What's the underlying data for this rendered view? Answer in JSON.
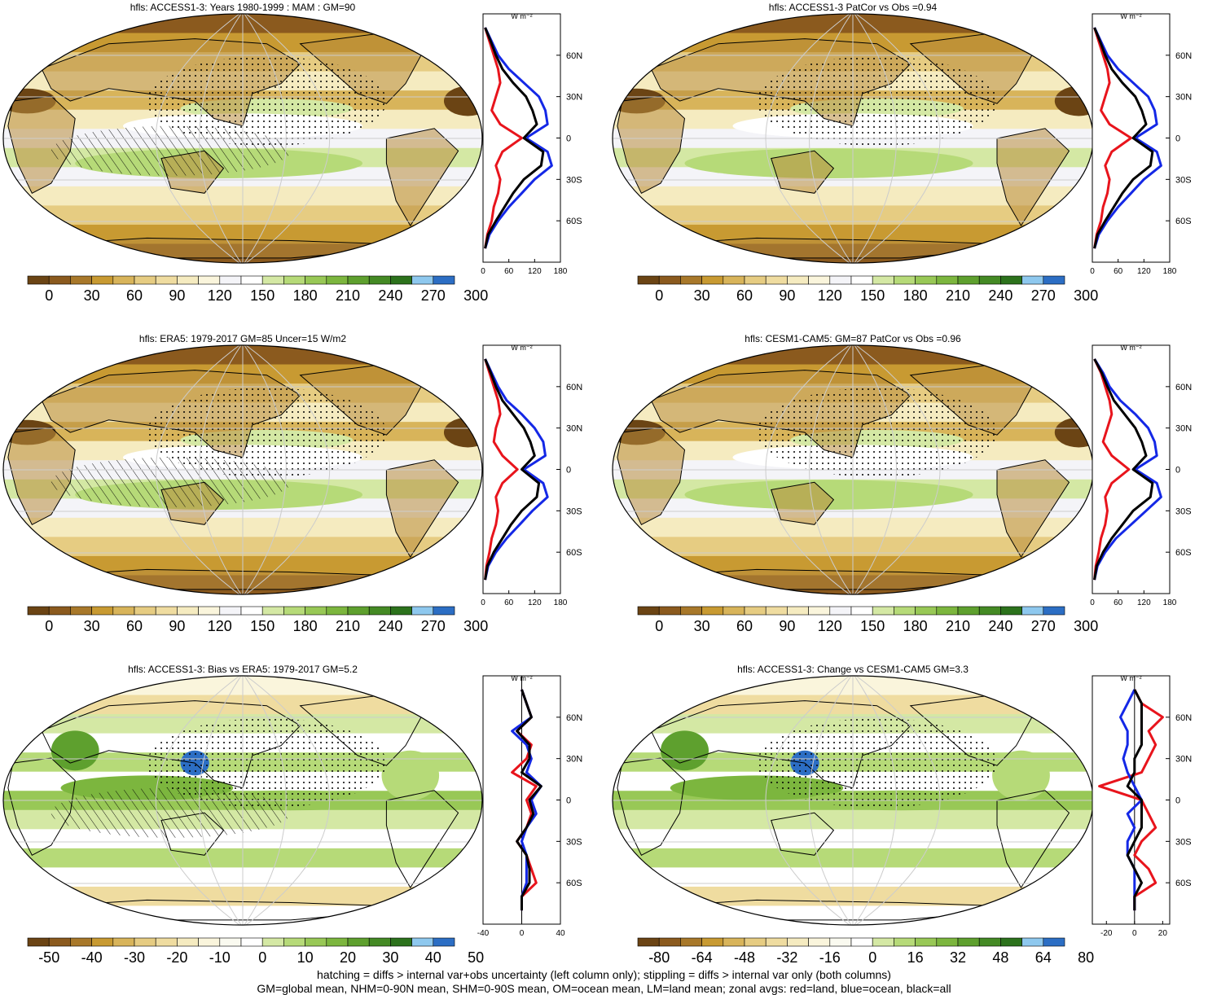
{
  "footer": {
    "line1": "hatching = diffs > internal var+obs uncertainty (left column only); stippling = diffs > internal var only (both columns)",
    "line2": "GM=global mean, NHM=0-90N mean, SHM=0-90S mean, OM=ocean mean, LM=land mean; zonal avgs: red=land, blue=ocean, black=all"
  },
  "colors": {
    "land": "#e8141c",
    "ocean": "#1428e6",
    "all": "#000000"
  },
  "lat_labels": [
    "60N",
    "30N",
    "0",
    "30S",
    "60S"
  ],
  "unit_label": "W m⁻²",
  "chart_data": [
    {
      "type": "heatmap",
      "title": "hfls: ACCESS1-3: Years 1980-1999 : MAM : GM=90",
      "colorbar_ticks": [
        "0",
        "30",
        "60",
        "90",
        "120",
        "150",
        "180",
        "210",
        "240",
        "270",
        "300"
      ],
      "colorbar_colors": [
        "#6b4414",
        "#8b5a1e",
        "#a8782a",
        "#c89a32",
        "#d8b45a",
        "#e6cc82",
        "#efdca0",
        "#f5ebc0",
        "#faf5dc",
        "#f4f4f8",
        "#ffffff",
        "#d4e8a4",
        "#b6da78",
        "#98c856",
        "#7cb63e",
        "#5ea02e",
        "#448a24",
        "#2c721c",
        "#8ec8ee",
        "#2c6ec4"
      ],
      "profile": {
        "xlim": [
          0,
          180
        ],
        "xticks": [
          "0",
          "60",
          "120",
          "180"
        ],
        "lat": [
          80,
          70,
          60,
          50,
          40,
          30,
          20,
          10,
          0,
          -10,
          -20,
          -30,
          -40,
          -50,
          -60,
          -70,
          -80
        ],
        "land": [
          5,
          15,
          25,
          35,
          40,
          30,
          20,
          40,
          90,
          45,
          30,
          40,
          35,
          25,
          20,
          10,
          5
        ],
        "ocean": [
          5,
          20,
          35,
          60,
          95,
          130,
          145,
          150,
          100,
          150,
          160,
          120,
          90,
          60,
          35,
          15,
          5
        ],
        "all": [
          5,
          18,
          30,
          45,
          70,
          100,
          115,
          125,
          95,
          140,
          135,
          95,
          70,
          50,
          30,
          12,
          5
        ]
      }
    },
    {
      "type": "heatmap",
      "title": "hfls: ACCESS1-3 PatCor vs Obs =0.94",
      "colorbar_ticks": [
        "0",
        "30",
        "60",
        "90",
        "120",
        "150",
        "180",
        "210",
        "240",
        "270",
        "300"
      ],
      "colorbar_colors": [
        "#6b4414",
        "#8b5a1e",
        "#a8782a",
        "#c89a32",
        "#d8b45a",
        "#e6cc82",
        "#efdca0",
        "#f5ebc0",
        "#faf5dc",
        "#f4f4f8",
        "#ffffff",
        "#d4e8a4",
        "#b6da78",
        "#98c856",
        "#7cb63e",
        "#5ea02e",
        "#448a24",
        "#2c721c",
        "#8ec8ee",
        "#2c6ec4"
      ],
      "profile": {
        "xlim": [
          0,
          180
        ],
        "xticks": [
          "0",
          "60",
          "120",
          "180"
        ],
        "lat": [
          80,
          70,
          60,
          50,
          40,
          30,
          20,
          10,
          0,
          -10,
          -20,
          -30,
          -40,
          -50,
          -60,
          -70,
          -80
        ],
        "land": [
          5,
          15,
          25,
          35,
          40,
          30,
          20,
          40,
          90,
          45,
          30,
          40,
          35,
          25,
          20,
          10,
          5
        ],
        "ocean": [
          5,
          20,
          35,
          60,
          95,
          130,
          145,
          150,
          100,
          150,
          160,
          120,
          90,
          60,
          35,
          15,
          5
        ],
        "all": [
          5,
          18,
          30,
          45,
          70,
          100,
          115,
          125,
          95,
          140,
          135,
          95,
          70,
          50,
          30,
          12,
          5
        ]
      }
    },
    {
      "type": "heatmap",
      "title": "hfls: ERA5: 1979-2017 GM=85 Uncer=15 W/m2",
      "colorbar_ticks": [
        "0",
        "30",
        "60",
        "90",
        "120",
        "150",
        "180",
        "210",
        "240",
        "270",
        "300"
      ],
      "colorbar_colors": [
        "#6b4414",
        "#8b5a1e",
        "#a8782a",
        "#c89a32",
        "#d8b45a",
        "#e6cc82",
        "#efdca0",
        "#f5ebc0",
        "#faf5dc",
        "#f4f4f8",
        "#ffffff",
        "#d4e8a4",
        "#b6da78",
        "#98c856",
        "#7cb63e",
        "#5ea02e",
        "#448a24",
        "#2c721c",
        "#8ec8ee",
        "#2c6ec4"
      ],
      "profile": {
        "xlim": [
          0,
          180
        ],
        "xticks": [
          "0",
          "60",
          "120",
          "180"
        ],
        "lat": [
          80,
          70,
          60,
          50,
          40,
          30,
          20,
          10,
          0,
          -10,
          -20,
          -30,
          -40,
          -50,
          -60,
          -70,
          -80
        ],
        "land": [
          5,
          15,
          25,
          35,
          40,
          30,
          25,
          45,
          80,
          45,
          30,
          35,
          30,
          20,
          15,
          8,
          5
        ],
        "ocean": [
          5,
          20,
          35,
          55,
          90,
          120,
          140,
          145,
          95,
          140,
          150,
          115,
          85,
          55,
          30,
          12,
          5
        ],
        "all": [
          5,
          18,
          30,
          45,
          70,
          95,
          110,
          120,
          90,
          130,
          125,
          90,
          65,
          45,
          25,
          10,
          5
        ]
      }
    },
    {
      "type": "heatmap",
      "title": "hfls: CESM1-CAM5: GM=87 PatCor vs Obs =0.96",
      "colorbar_ticks": [
        "0",
        "30",
        "60",
        "90",
        "120",
        "150",
        "180",
        "210",
        "240",
        "270",
        "300"
      ],
      "colorbar_colors": [
        "#6b4414",
        "#8b5a1e",
        "#a8782a",
        "#c89a32",
        "#d8b45a",
        "#e6cc82",
        "#efdca0",
        "#f5ebc0",
        "#faf5dc",
        "#f4f4f8",
        "#ffffff",
        "#d4e8a4",
        "#b6da78",
        "#98c856",
        "#7cb63e",
        "#5ea02e",
        "#448a24",
        "#2c721c",
        "#8ec8ee",
        "#2c6ec4"
      ],
      "profile": {
        "xlim": [
          0,
          180
        ],
        "xticks": [
          "0",
          "60",
          "120",
          "180"
        ],
        "lat": [
          80,
          70,
          60,
          50,
          40,
          30,
          20,
          10,
          0,
          -10,
          -20,
          -30,
          -40,
          -50,
          -60,
          -70,
          -80
        ],
        "land": [
          5,
          20,
          30,
          40,
          45,
          35,
          25,
          45,
          85,
          45,
          30,
          35,
          30,
          20,
          15,
          8,
          5
        ],
        "ocean": [
          5,
          25,
          40,
          65,
          100,
          130,
          145,
          150,
          100,
          150,
          160,
          125,
          90,
          55,
          30,
          12,
          5
        ],
        "all": [
          5,
          22,
          35,
          50,
          75,
          100,
          115,
          125,
          95,
          140,
          135,
          95,
          70,
          45,
          25,
          10,
          5
        ]
      }
    },
    {
      "type": "heatmap",
      "title": "hfls: ACCESS1-3: Bias vs ERA5: 1979-2017 GM=5.2",
      "colorbar_ticks": [
        "-50",
        "-40",
        "-30",
        "-20",
        "-10",
        "0",
        "10",
        "20",
        "30",
        "40",
        "50"
      ],
      "colorbar_colors": [
        "#6b4414",
        "#8b5a1e",
        "#a8782a",
        "#c89a32",
        "#d8b45a",
        "#e6cc82",
        "#efdca0",
        "#f5ebc0",
        "#faf5dc",
        "#fafaf0",
        "#ffffff",
        "#d4e8a4",
        "#b6da78",
        "#98c856",
        "#7cb63e",
        "#5ea02e",
        "#448a24",
        "#2c721c",
        "#8ec8ee",
        "#2c6ec4"
      ],
      "profile": {
        "xlim": [
          -40,
          40
        ],
        "xticks": [
          "-40",
          "0",
          "40"
        ],
        "lat": [
          80,
          70,
          60,
          50,
          40,
          30,
          20,
          10,
          0,
          -10,
          -20,
          -30,
          -40,
          -50,
          -60,
          -70,
          -80
        ],
        "land": [
          0,
          5,
          10,
          -5,
          10,
          5,
          -10,
          15,
          5,
          10,
          5,
          -5,
          5,
          10,
          15,
          0,
          0
        ],
        "ocean": [
          0,
          5,
          10,
          -10,
          5,
          10,
          5,
          20,
          10,
          15,
          5,
          0,
          5,
          5,
          5,
          0,
          0
        ],
        "all": [
          0,
          5,
          10,
          -5,
          8,
          8,
          0,
          20,
          8,
          12,
          5,
          -5,
          5,
          8,
          8,
          0,
          0
        ]
      }
    },
    {
      "type": "heatmap",
      "title": "hfls: ACCESS1-3: Change vs CESM1-CAM5 GM=3.3",
      "colorbar_ticks": [
        "-80",
        "-64",
        "-48",
        "-32",
        "-16",
        "0",
        "16",
        "32",
        "48",
        "64",
        "80"
      ],
      "colorbar_colors": [
        "#6b4414",
        "#8b5a1e",
        "#a8782a",
        "#c89a32",
        "#d8b45a",
        "#e6cc82",
        "#efdca0",
        "#f5ebc0",
        "#faf5dc",
        "#fafaf0",
        "#ffffff",
        "#d4e8a4",
        "#b6da78",
        "#98c856",
        "#7cb63e",
        "#5ea02e",
        "#448a24",
        "#2c721c",
        "#8ec8ee",
        "#2c6ec4"
      ],
      "profile": {
        "xlim": [
          -30,
          25
        ],
        "xticks": [
          "-20",
          "0",
          "20"
        ],
        "lat": [
          80,
          70,
          60,
          50,
          40,
          30,
          20,
          10,
          0,
          -10,
          -20,
          -30,
          -40,
          -50,
          -60,
          -70,
          -80
        ],
        "land": [
          0,
          5,
          20,
          10,
          15,
          10,
          5,
          -25,
          5,
          10,
          15,
          5,
          0,
          10,
          15,
          0,
          0
        ],
        "ocean": [
          0,
          -5,
          -10,
          -5,
          -5,
          -8,
          -5,
          0,
          5,
          -5,
          0,
          -5,
          -5,
          0,
          0,
          0,
          0
        ],
        "all": [
          0,
          5,
          5,
          5,
          5,
          0,
          0,
          -5,
          5,
          5,
          5,
          0,
          -5,
          0,
          5,
          0,
          0
        ]
      }
    }
  ]
}
